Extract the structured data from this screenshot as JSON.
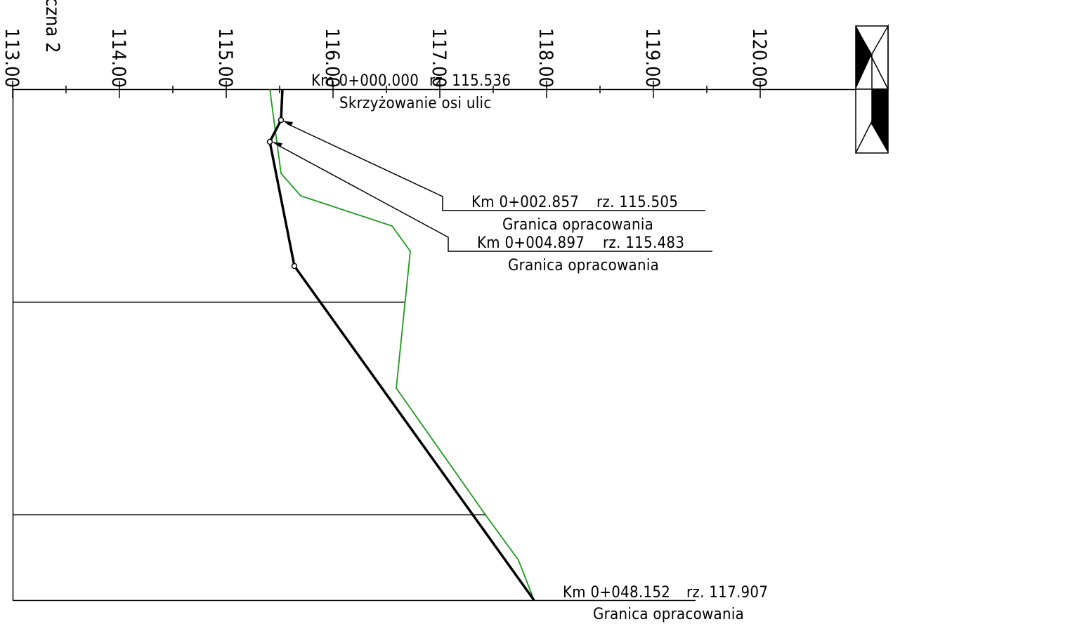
{
  "axis": {
    "tick_labels": [
      "113.00",
      "114.00",
      "115.00",
      "116.00",
      "117.00",
      "118.00",
      "119.00",
      "120.00"
    ],
    "partial_title": "czna 2"
  },
  "annotations": [
    {
      "km": "Km 0+000.000",
      "rz": "rz. 115.536",
      "note": "Skrzyżowanie osi ulic"
    },
    {
      "km": "Km 0+002.857",
      "rz": "rz. 115.505",
      "note": "Granica opracowania"
    },
    {
      "km": "Km 0+004.897",
      "rz": "rz. 115.483",
      "note": "Granica opracowania"
    },
    {
      "km": "Km 0+048.152",
      "rz": "rz. 117.907",
      "note": "Granica opracowania"
    }
  ],
  "colors": {
    "design_line": "#000000",
    "terrain_line": "#1a9a1a",
    "background": "#ffffff"
  },
  "icons": [
    "north-arrow-icon"
  ]
}
